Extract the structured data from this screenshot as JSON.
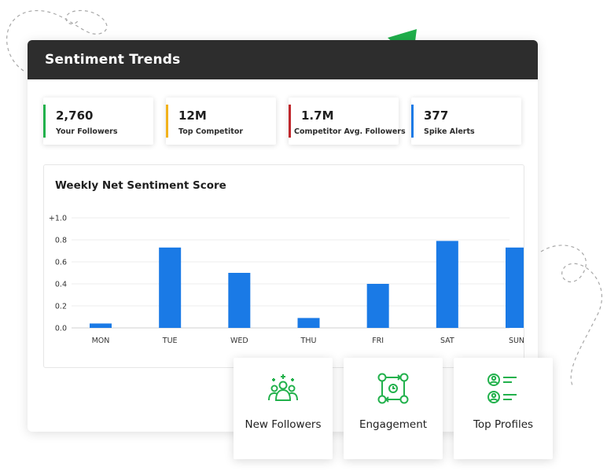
{
  "panel": {
    "title": "Sentiment Trends"
  },
  "stats": [
    {
      "value": "2,760",
      "label": "Your Followers",
      "color": "#22b14c"
    },
    {
      "value": "12M",
      "label": "Top Competitor",
      "color": "#f2b21b"
    },
    {
      "value": "1.7M",
      "label": "Competitor Avg. Followers",
      "color": "#c0282d"
    },
    {
      "value": "377",
      "label": "Spike Alerts",
      "color": "#1a7ae6"
    }
  ],
  "chart_data": {
    "type": "bar",
    "title": "Weekly Net Sentiment Score",
    "categories": [
      "MON",
      "TUE",
      "WED",
      "THU",
      "FRI",
      "SAT",
      "SUN"
    ],
    "values": [
      0.04,
      0.73,
      0.5,
      0.09,
      0.4,
      0.79,
      0.73
    ],
    "yticks": [
      "0.0",
      "0.2",
      "0.4",
      "0.6",
      "0.8",
      "+1.0"
    ],
    "ylim": [
      0,
      1.0
    ],
    "xlabel": "",
    "ylabel": "",
    "grid": true,
    "bar_color": "#1a7ae6"
  },
  "actions": [
    {
      "label": "New Followers",
      "icon": "group-icon"
    },
    {
      "label": "Engagement",
      "icon": "engagement-network-icon"
    },
    {
      "label": "Top Profiles",
      "icon": "profile-list-icon"
    }
  ],
  "accent_color": "#22b14c"
}
